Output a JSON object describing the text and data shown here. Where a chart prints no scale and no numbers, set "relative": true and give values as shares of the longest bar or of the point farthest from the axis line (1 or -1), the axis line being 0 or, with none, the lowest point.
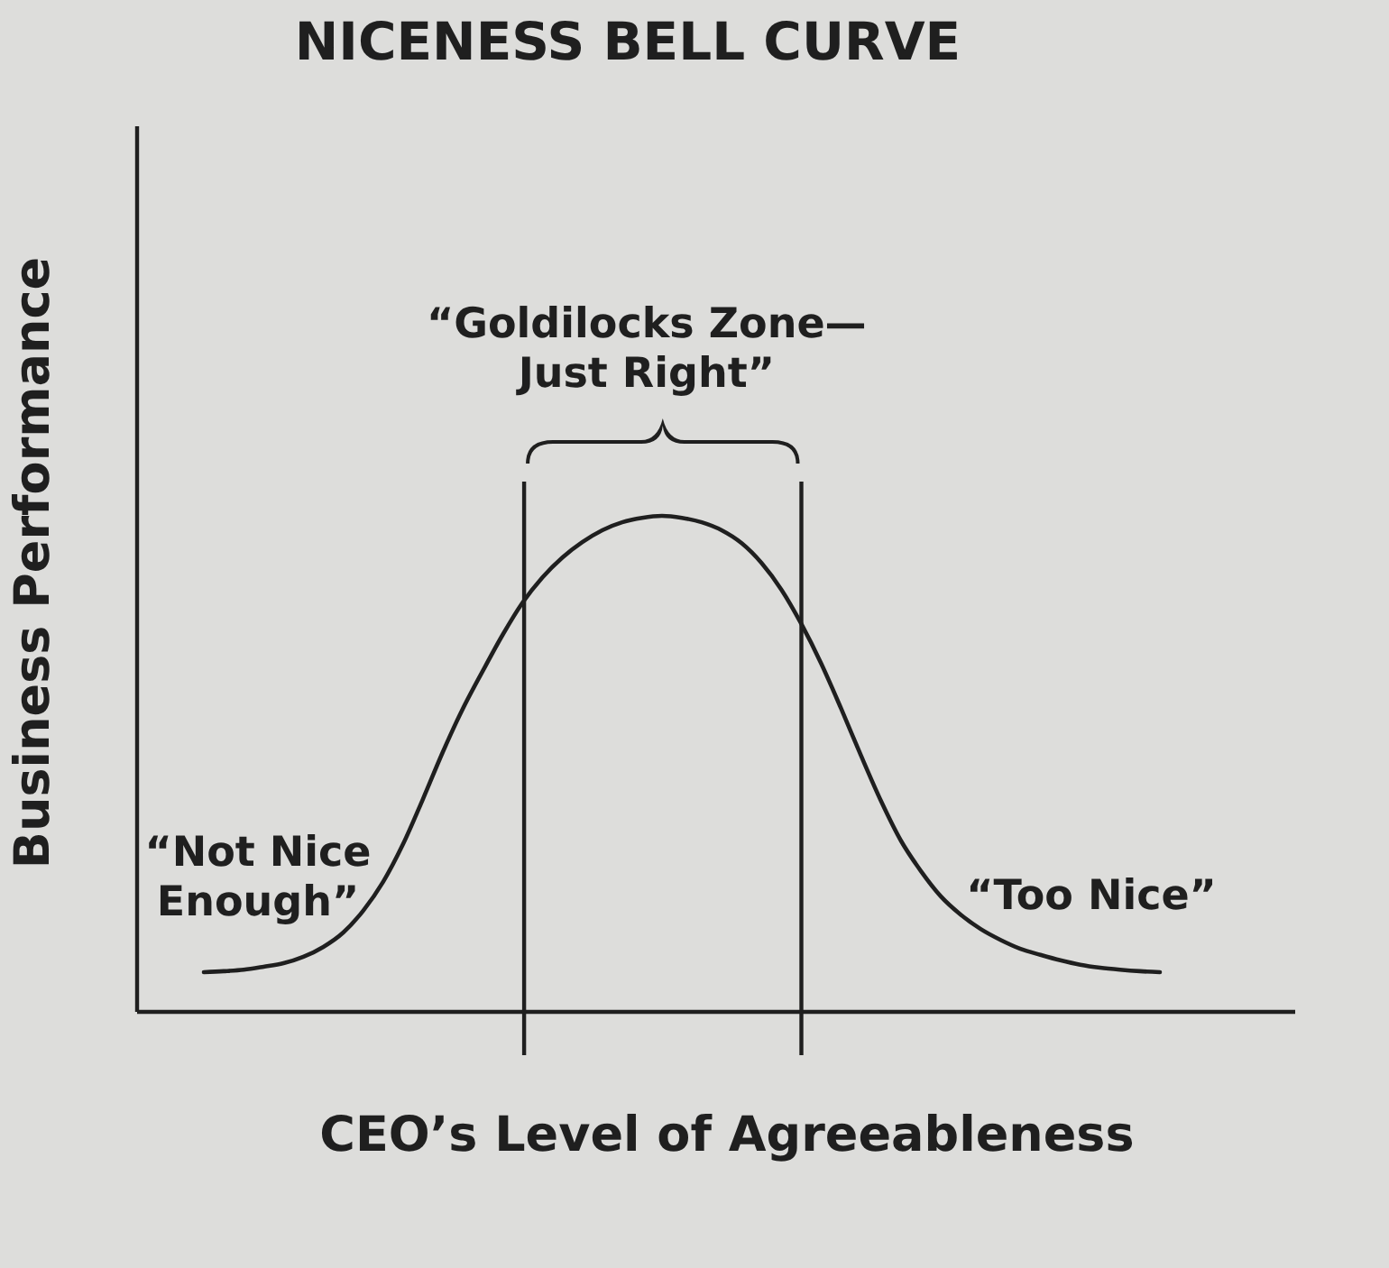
{
  "chart_data": {
    "type": "line",
    "title": "NICENESS BELL CURVE",
    "xlabel": "CEO’s Level of Agreeableness",
    "ylabel": "Business Performance",
    "relative": true,
    "categories": [
      null,
      null,
      null,
      null,
      null,
      null,
      null,
      null,
      null,
      null,
      null,
      null,
      null,
      null,
      null,
      null,
      null,
      null,
      null,
      null,
      null,
      null,
      null,
      null,
      null,
      null,
      null,
      null,
      null,
      null,
      null,
      null,
      null,
      null,
      null,
      null,
      null,
      null,
      null,
      null,
      null,
      null,
      null,
      null,
      null,
      null,
      null,
      null,
      null
    ],
    "series": [
      {
        "color": "#1f1f1f",
        "values": [
          0.08,
          0.082,
          0.085,
          0.091,
          0.098,
          0.111,
          0.131,
          0.16,
          0.204,
          0.262,
          0.338,
          0.429,
          0.524,
          0.611,
          0.687,
          0.76,
          0.825,
          0.876,
          0.916,
          0.947,
          0.971,
          0.987,
          0.996,
          1,
          0.996,
          0.987,
          0.971,
          0.945,
          0.905,
          0.851,
          0.782,
          0.702,
          0.611,
          0.516,
          0.425,
          0.345,
          0.284,
          0.233,
          0.196,
          0.167,
          0.145,
          0.127,
          0.115,
          0.104,
          0.095,
          0.089,
          0.085,
          0.082,
          0.08
        ]
      }
    ],
    "annotations": [
      "“Goldilocks Zone—\nJust Right”",
      "“Not Nice\nEnough”",
      "“Too Nice”"
    ]
  }
}
